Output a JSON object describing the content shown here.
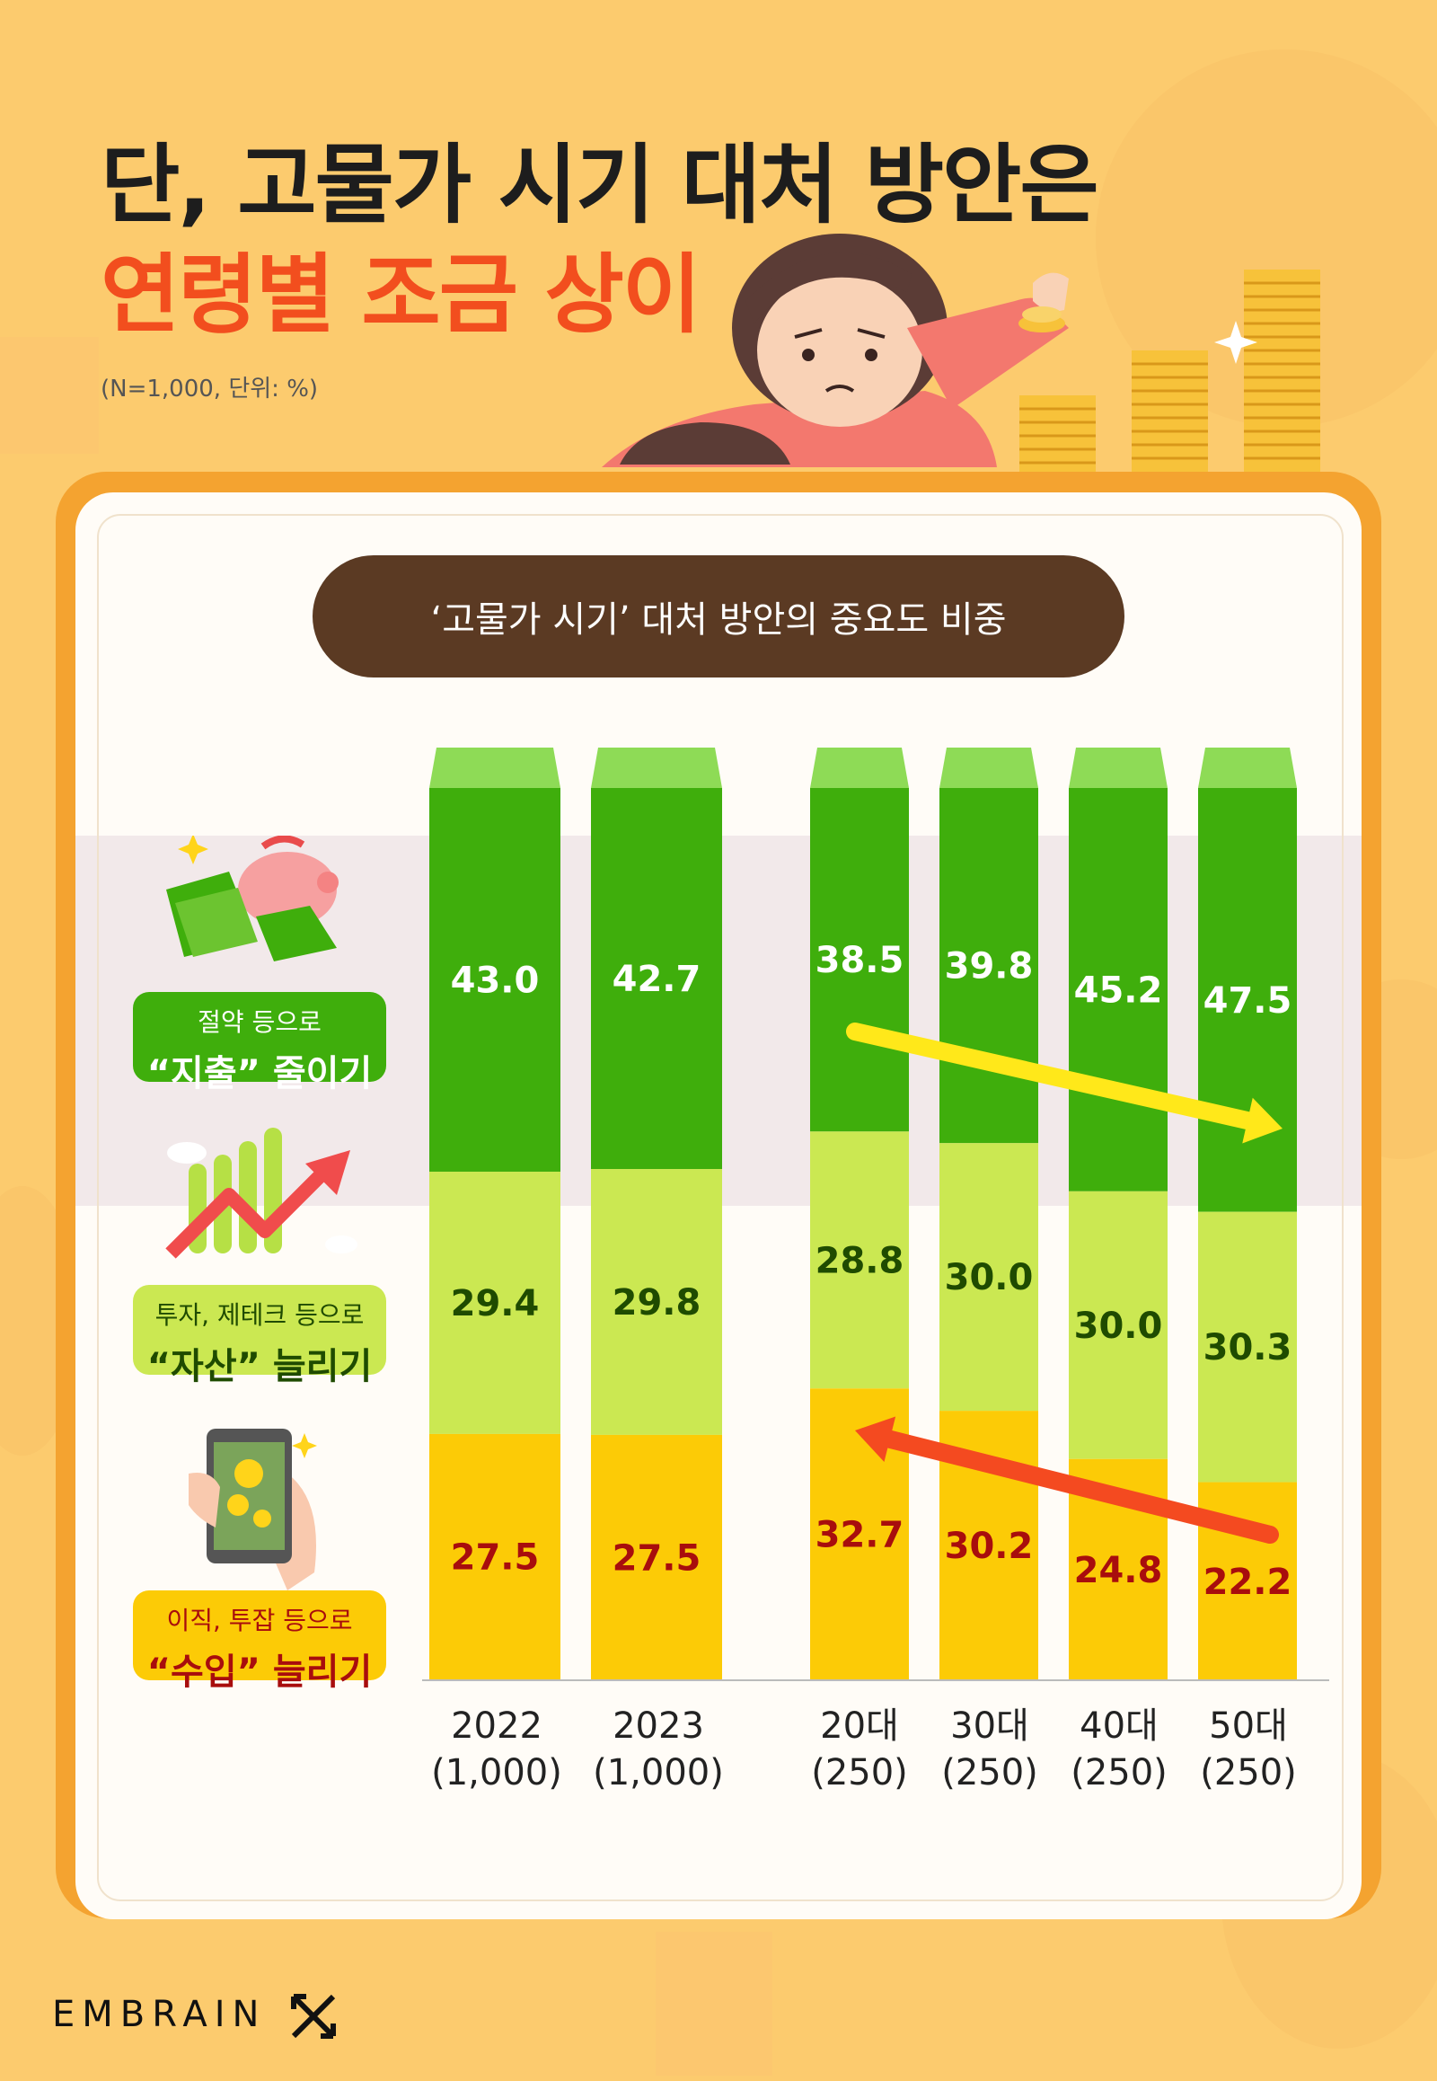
{
  "header": {
    "title_line1": "단, 고물가 시기 대처 방안은",
    "title_line2": "연령별 조금 상이",
    "note": "(N=1,000, 단위:  %)"
  },
  "panel": {
    "pill_title": "‘고물가 시기’ 대처 방안의 중요도 비중"
  },
  "legend": [
    {
      "line1": "절약 등으로",
      "line2": "“지출” 줄이기"
    },
    {
      "line1": "투자, 제테크 등으로",
      "line2": "“자산” 늘리기"
    },
    {
      "line1": "이직, 투잡 등으로",
      "line2": "“수입” 늘리기"
    }
  ],
  "brand": {
    "name": "EMBRAIN"
  },
  "colors": {
    "expense": "#3FAE0C",
    "expense_top": "#8EDB56",
    "asset": "#CBE852",
    "income": "#FCCB06",
    "label_expense": "#FFFFFF",
    "label_asset": "#1F4B00",
    "label_income": "#A80D0D",
    "arrow_yellow": "#FFE81A",
    "arrow_red": "#F44A20"
  },
  "chart_data": {
    "type": "bar",
    "stacked": true,
    "categories": [
      "2022",
      "2023",
      "20대",
      "30대",
      "40대",
      "50대"
    ],
    "category_sublabels": [
      "(1,000)",
      "(1,000)",
      "(250)",
      "(250)",
      "(250)",
      "(250)"
    ],
    "series": [
      {
        "name": "절약 등으로 “지출” 줄이기",
        "values": [
          43.0,
          42.7,
          38.5,
          39.8,
          45.2,
          47.5
        ]
      },
      {
        "name": "투자, 제테크 등으로 “자산” 늘리기",
        "values": [
          29.4,
          29.8,
          28.8,
          30.0,
          30.0,
          30.3
        ]
      },
      {
        "name": "이직, 투잡 등으로 “수입” 늘리기",
        "values": [
          27.5,
          27.5,
          32.7,
          30.2,
          24.8,
          22.2
        ]
      }
    ],
    "ylim": [
      0,
      100
    ],
    "grid": false,
    "legend_position": "left",
    "annotations": [
      {
        "type": "arrow",
        "from_category": "20대",
        "to_category": "50대",
        "series": "절약 등으로 “지출” 줄이기",
        "direction": "increase"
      },
      {
        "type": "arrow",
        "from_category": "50대",
        "to_category": "20대",
        "series": "이직, 투잡 등으로 “수입” 늘리기",
        "direction": "increase"
      }
    ]
  }
}
